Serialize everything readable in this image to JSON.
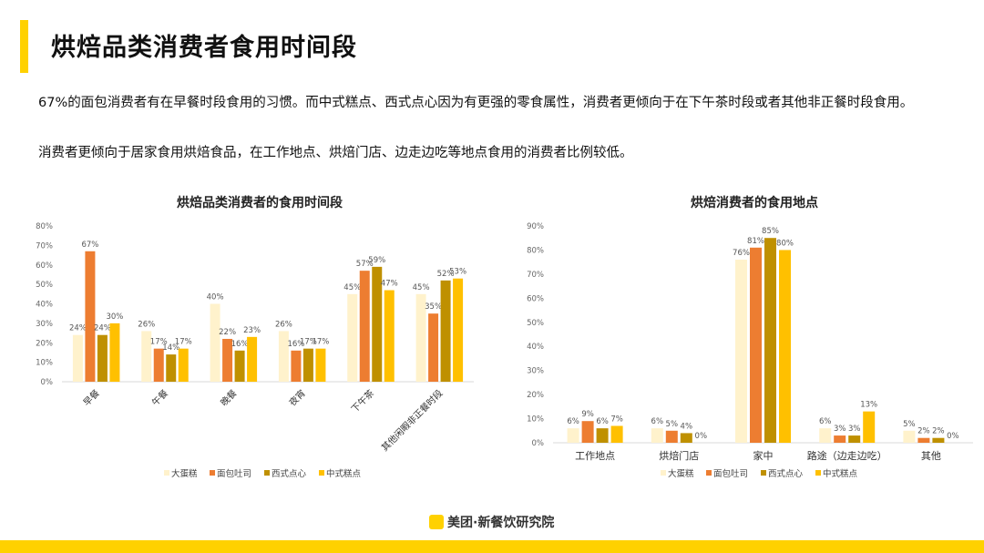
{
  "header": {
    "title": "烘焙品类消费者食用时间段"
  },
  "body": {
    "paragraph_1": "67%的面包消费者有在早餐时段食用的习惯。而中式糕点、西式点心因为有更强的零食属性，消费者更倾向于在下午茶时段或者其他非正餐时段食用。",
    "paragraph_2": "消费者更倾向于居家食用烘焙食品，在工作地点、烘焙门店、边走边吃等地点食用的消费者比例较低。"
  },
  "footer": {
    "logo_badge": "美团",
    "brand": "美团·新餐饮研究院"
  },
  "colors": {
    "accent": "#FFD100",
    "大蛋糕": "#FFF2CC",
    "面包吐司": "#ED7D31",
    "西式点心": "#BF9000",
    "中式糕点": "#FFC000"
  },
  "chart_data": [
    {
      "type": "bar",
      "title": "烘焙品类消费者的食用时间段",
      "categories": [
        "早餐",
        "午餐",
        "晚餐",
        "夜宵",
        "下午茶",
        "其他闲暇非正餐时段"
      ],
      "series": [
        {
          "name": "大蛋糕",
          "color": "#FFF2CC",
          "values": [
            24,
            26,
            40,
            26,
            45,
            45
          ]
        },
        {
          "name": "面包吐司",
          "color": "#ED7D31",
          "values": [
            67,
            17,
            22,
            16,
            57,
            35
          ]
        },
        {
          "name": "西式点心",
          "color": "#BF9000",
          "values": [
            24,
            14,
            16,
            17,
            59,
            52
          ]
        },
        {
          "name": "中式糕点",
          "color": "#FFC000",
          "values": [
            30,
            17,
            23,
            17,
            47,
            53
          ]
        }
      ],
      "ylim": [
        0,
        80
      ],
      "yticks": [
        "0%",
        "10%",
        "20%",
        "30%",
        "40%",
        "50%",
        "60%",
        "70%",
        "80%"
      ],
      "unit": "%",
      "grid": false,
      "legend": "bottom",
      "xlabel_rotation": "-45"
    },
    {
      "type": "bar",
      "title": "烘焙消费者的食用地点",
      "categories": [
        "工作地点",
        "烘焙门店",
        "家中",
        "路途（边走边吃）",
        "其他"
      ],
      "series": [
        {
          "name": "大蛋糕",
          "color": "#FFF2CC",
          "values": [
            6,
            6,
            76,
            6,
            5
          ]
        },
        {
          "name": "面包吐司",
          "color": "#ED7D31",
          "values": [
            9,
            5,
            81,
            3,
            2
          ]
        },
        {
          "name": "西式点心",
          "color": "#BF9000",
          "values": [
            6,
            4,
            85,
            3,
            2
          ]
        },
        {
          "name": "中式糕点",
          "color": "#FFC000",
          "values": [
            7,
            0,
            80,
            13,
            0
          ]
        }
      ],
      "ylim": [
        0,
        90
      ],
      "yticks": [
        "0%",
        "10%",
        "20%",
        "30%",
        "40%",
        "50%",
        "60%",
        "70%",
        "80%",
        "90%"
      ],
      "unit": "%",
      "grid": false,
      "legend": "bottom",
      "xlabel_rotation": "0"
    }
  ]
}
